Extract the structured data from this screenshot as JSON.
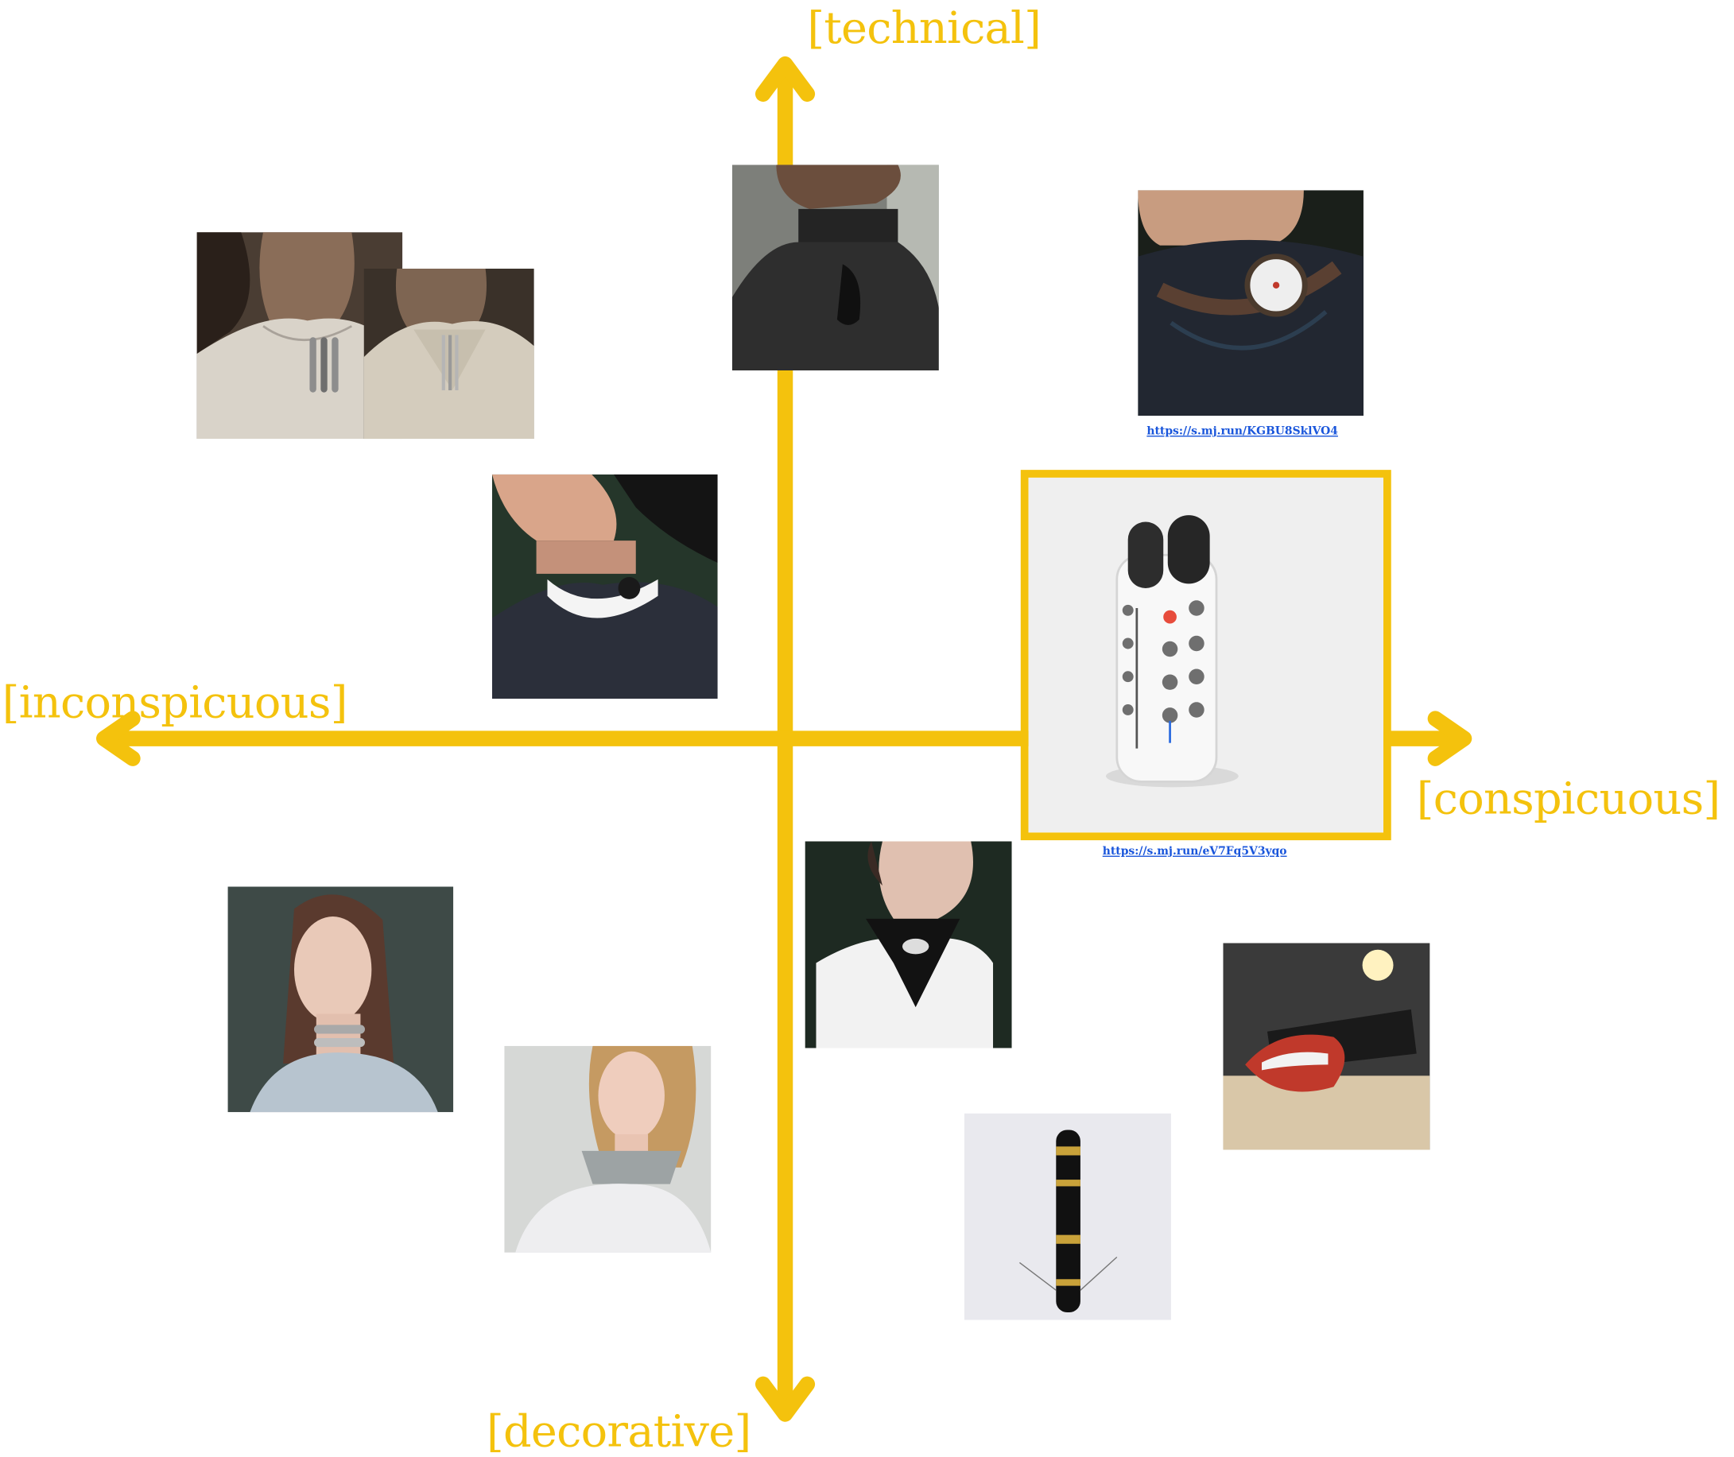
{
  "axes": {
    "top": "[technical]",
    "bottom": "[decorative]",
    "left": "[inconspicuous]",
    "right": "[conspicuous]",
    "color": "#F4C20D"
  },
  "images": [
    {
      "id": "collar-pins",
      "icon": "collar-pin-photo",
      "caption": ""
    },
    {
      "id": "collar-pins-closeup",
      "icon": "collar-pin-closeup-photo",
      "caption": ""
    },
    {
      "id": "black-leather-collar",
      "icon": "black-collar-photo",
      "caption": ""
    },
    {
      "id": "steampunk-choker",
      "icon": "steampunk-choker-photo",
      "link": "https://s.mj.run/KGBU8SklVO4"
    },
    {
      "id": "white-neck-device",
      "icon": "neck-device-photo",
      "caption": ""
    },
    {
      "id": "remote-device",
      "icon": "remote-device-photo",
      "link": "https://s.mj.run/eV7Fq5V3yqo",
      "highlighted": true
    },
    {
      "id": "lace-choker",
      "icon": "lace-choker-photo",
      "caption": ""
    },
    {
      "id": "metal-collar-woman",
      "icon": "metal-collar-photo",
      "caption": ""
    },
    {
      "id": "white-collar-woman",
      "icon": "white-collar-photo",
      "caption": ""
    },
    {
      "id": "gold-tube",
      "icon": "gold-tube-photo",
      "caption": ""
    },
    {
      "id": "mouth-strap",
      "icon": "mouth-strap-photo",
      "caption": ""
    }
  ]
}
